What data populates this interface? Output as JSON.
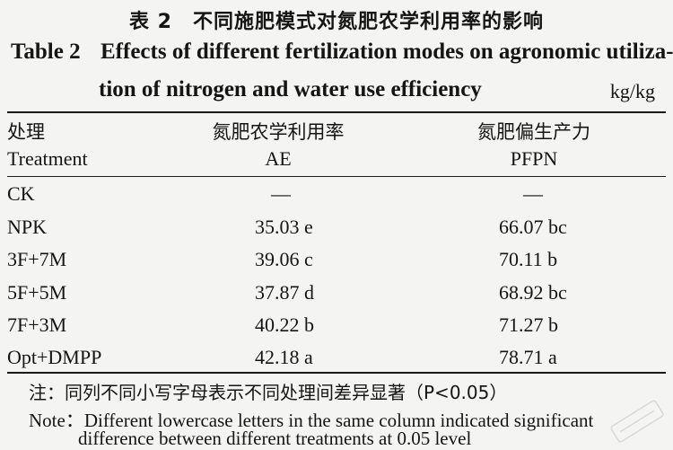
{
  "caption": {
    "cn": "表 2　不同施肥模式对氮肥农学利用率的影响",
    "en_label": "Table 2",
    "en_line1": "Effects of different fertilization modes on agronomic utiliza-",
    "en_line2": "tion of nitrogen and water use efficiency",
    "unit": "kg/kg"
  },
  "header": {
    "treatment_cn": "处理",
    "treatment_en": "Treatment",
    "ae_cn": "氮肥农学利用率",
    "ae_en": "AE",
    "pfpn_cn": "氮肥偏生产力",
    "pfpn_en": "PFPN"
  },
  "rows": [
    {
      "treatment": "CK",
      "ae": "—",
      "pfpn": "—"
    },
    {
      "treatment": "NPK",
      "ae": "35.03 e",
      "pfpn": "66.07 bc"
    },
    {
      "treatment": "3F+7M",
      "ae": "39.06 c",
      "pfpn": "70.11 b"
    },
    {
      "treatment": "5F+5M",
      "ae": "37.87 d",
      "pfpn": "68.92 bc"
    },
    {
      "treatment": "7F+3M",
      "ae": "40.22 b",
      "pfpn": "71.27 b"
    },
    {
      "treatment": "Opt+DMPP",
      "ae": "42.18 a",
      "pfpn": "78.71 a"
    }
  ],
  "notes": {
    "cn": "注：同列不同小写字母表示不同处理间差异显著（P<0.05）",
    "en_line1": "Note：Different lowercase letters in the same column indicated significant",
    "en_line2": "difference between different treatments at 0.05 level"
  },
  "colors": {
    "background": "#f4f4f2",
    "text": "#151515"
  }
}
